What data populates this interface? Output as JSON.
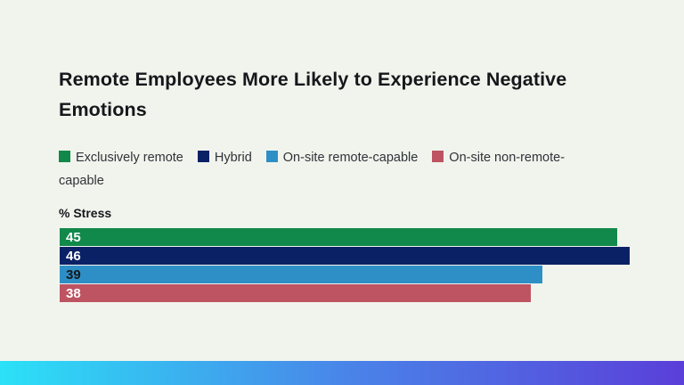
{
  "page": {
    "background": "#F1F4ED",
    "title_color": "#15171B",
    "legend_text_color": "#2F3338"
  },
  "chart_data": {
    "type": "bar",
    "orientation": "horizontal",
    "title": "Remote Employees More Likely to Experience Negative Emotions",
    "axis_label": "% Stress",
    "categories": [
      "Exclusively remote",
      "Hybrid",
      "On-site remote-capable",
      "On-site non-remote-capable"
    ],
    "values": [
      45,
      46,
      39,
      38
    ],
    "bar_colors": [
      "#11894B",
      "#0B2166",
      "#2E8FC7",
      "#BE5362"
    ],
    "value_label_colors": [
      "#FFFFFF",
      "#FFFFFF",
      "#16181D",
      "#FFFFFF"
    ],
    "xlim": [
      0,
      50.4
    ],
    "grid": false,
    "legend_position": "top",
    "value_labels_shown": true
  },
  "footer": {
    "gradient_colors": [
      "#2BE1F7",
      "#4A82E8",
      "#5A3FD9"
    ]
  }
}
